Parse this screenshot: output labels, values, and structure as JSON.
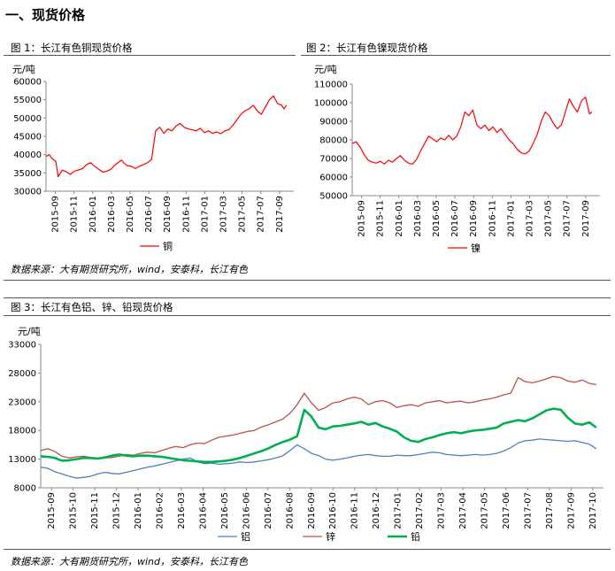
{
  "section_title": "一、现货价格",
  "figures": {
    "fig1": {
      "title": "图 1：长江有色铜现货价格"
    },
    "fig2": {
      "title": "图 2：长江有色镍现货价格"
    },
    "fig3": {
      "title": "图 3：长江有色铝、锌、铅现货价格"
    }
  },
  "source_1": "数据来源：大有期货研究所，wind，安泰科，长江有色",
  "source_2": "数据来源：大有期货研究所，wind，安泰科，长江有色",
  "chart_data": [
    {
      "type": "line",
      "ylabel": "元/吨",
      "ylim": [
        30000,
        60000
      ],
      "yticks": [
        "60000",
        "55000",
        "50000",
        "45000",
        "40000",
        "35000",
        "30000"
      ],
      "x_ticks": [
        "2015-09",
        "2015-11",
        "2016-01",
        "2016-03",
        "2016-05",
        "2016-07",
        "2016-09",
        "2016-11",
        "2017-01",
        "2017-03",
        "2017-05",
        "2017-07",
        "2017-09"
      ],
      "legend_position": "bottom",
      "series": [
        {
          "name": "铜",
          "color": "#ff0000",
          "x": [
            0,
            0.4,
            0.7,
            1.2,
            1.5,
            2,
            2.5,
            3,
            3.5,
            4,
            4.5,
            5,
            5.5,
            6,
            6.5,
            7,
            7.5,
            8,
            8.5,
            9,
            9.3,
            9.6,
            10,
            10.5,
            11,
            11.5,
            12,
            12.5,
            13,
            13.5,
            14,
            14.5,
            15,
            15.5,
            16,
            16.5,
            17,
            17.5,
            18,
            18.5,
            19,
            19.5,
            20,
            20.5,
            21,
            21.5,
            22,
            22.5,
            23,
            23.5,
            24,
            24.5,
            25,
            25.5,
            26,
            26.5,
            27,
            27.5,
            28,
            28.5,
            29,
            29.3,
            29.6
          ],
          "values": [
            39500,
            40000,
            39000,
            38200,
            34000,
            35800,
            35300,
            34600,
            35500,
            35800,
            36200,
            37300,
            37800,
            36800,
            36000,
            35200,
            35500,
            36000,
            37200,
            38000,
            38500,
            37700,
            37000,
            36800,
            36200,
            36800,
            37300,
            37800,
            38700,
            46500,
            47500,
            45800,
            47000,
            46500,
            47800,
            48500,
            47500,
            47000,
            46800,
            46500,
            47200,
            46000,
            46500,
            45800,
            46200,
            45700,
            46500,
            46800,
            48000,
            49500,
            51000,
            52000,
            52500,
            53500,
            52000,
            51000,
            53000,
            55000,
            56000,
            54000,
            53500,
            52500,
            53500
          ]
        }
      ]
    },
    {
      "type": "line",
      "ylabel": "元/吨",
      "ylim": [
        50000,
        110000
      ],
      "yticks": [
        "110000",
        "100000",
        "90000",
        "80000",
        "70000",
        "60000",
        "50000"
      ],
      "x_ticks": [
        "2015-09",
        "2015-11",
        "2016-01",
        "2016-03",
        "2016-05",
        "2016-07",
        "2016-09",
        "2016-11",
        "2017-01",
        "2017-03",
        "2017-05",
        "2017-07",
        "2017-09"
      ],
      "legend_position": "bottom",
      "series": [
        {
          "name": "镍",
          "color": "#ff0000",
          "x": [
            0,
            0.5,
            1,
            1.5,
            2,
            2.5,
            3,
            3.5,
            4,
            4.5,
            5,
            5.5,
            6,
            6.5,
            7,
            7.5,
            8,
            8.5,
            9,
            9.5,
            10,
            10.5,
            11,
            11.5,
            12,
            12.5,
            13,
            13.5,
            14,
            14.5,
            15,
            15.5,
            16,
            16.5,
            17,
            17.5,
            18,
            18.5,
            19,
            19.5,
            20,
            20.5,
            21,
            21.5,
            22,
            22.5,
            23,
            23.5,
            24,
            24.5,
            25,
            25.5,
            26,
            26.5,
            27,
            27.5,
            28,
            28.5,
            29,
            29.5,
            29.8
          ],
          "values": [
            78000,
            79000,
            76000,
            72000,
            69000,
            68000,
            67500,
            68500,
            67000,
            69000,
            68000,
            70000,
            71500,
            69000,
            67500,
            67000,
            69500,
            74000,
            78000,
            82000,
            80500,
            79000,
            81000,
            80000,
            82500,
            80000,
            82000,
            87000,
            95000,
            93000,
            96000,
            88000,
            86000,
            88000,
            85000,
            87000,
            84000,
            86000,
            83000,
            80000,
            78000,
            75000,
            73000,
            72500,
            74000,
            78000,
            83000,
            90000,
            95000,
            93000,
            89000,
            86000,
            88000,
            95000,
            102000,
            98000,
            95000,
            101000,
            103000,
            94000,
            95000
          ]
        }
      ]
    },
    {
      "type": "line",
      "ylabel": "元/吨",
      "ylim": [
        8000,
        33000
      ],
      "yticks": [
        "33000",
        "28000",
        "23000",
        "18000",
        "13000",
        "8000"
      ],
      "x_ticks": [
        "2015-09",
        "2015-10",
        "2015-11",
        "2015-12",
        "2016-01",
        "2016-02",
        "2016-03",
        "2016-04",
        "2016-05",
        "2016-06",
        "2016-07",
        "2016-08",
        "2016-09",
        "2016-10",
        "2016-11",
        "2016-12",
        "2017-01",
        "2017-02",
        "2017-03",
        "2017-04",
        "2017-05",
        "2017-06",
        "2017-07",
        "2017-08",
        "2017-09",
        "2017-10"
      ],
      "legend_position": "bottom",
      "series": [
        {
          "name": "铝",
          "color": "#4f81bd",
          "x": [
            0,
            1,
            2,
            3,
            4,
            5,
            6,
            7,
            8,
            9,
            10,
            11,
            12,
            13,
            14,
            15,
            16,
            17,
            18,
            19,
            20,
            21,
            22,
            23,
            24,
            25,
            26,
            27,
            28,
            29,
            30,
            31,
            32,
            33,
            34,
            35,
            36,
            37,
            38,
            39,
            40,
            41,
            42,
            43,
            44,
            45,
            46,
            47,
            48,
            49,
            50,
            51,
            52,
            53,
            54,
            55,
            56,
            57,
            58,
            59,
            60,
            61,
            62,
            63,
            64,
            65,
            66,
            67,
            68,
            69,
            70,
            71,
            72,
            73,
            74,
            75,
            76,
            77,
            78
          ],
          "values": [
            11600,
            11400,
            10800,
            10400,
            10000,
            9700,
            9800,
            10000,
            10400,
            10700,
            10500,
            10400,
            10700,
            11000,
            11300,
            11600,
            11800,
            12100,
            12400,
            12700,
            13000,
            13200,
            12500,
            12200,
            12300,
            12100,
            12200,
            12300,
            12500,
            12400,
            12500,
            12700,
            12900,
            13200,
            13600,
            14500,
            15500,
            14800,
            14000,
            13600,
            13000,
            12800,
            13000,
            13200,
            13500,
            13700,
            13800,
            13600,
            13500,
            13500,
            13700,
            13600,
            13600,
            13800,
            14000,
            14200,
            14100,
            13800,
            13700,
            13600,
            13700,
            13800,
            13700,
            13800,
            14000,
            14400,
            15000,
            15800,
            16200,
            16300,
            16500,
            16400,
            16300,
            16200,
            16100,
            16200,
            15900,
            15600,
            14800
          ]
        },
        {
          "name": "锌",
          "color": "#c0504d",
          "x": [
            0,
            1,
            2,
            3,
            4,
            5,
            6,
            7,
            8,
            9,
            10,
            11,
            12,
            13,
            14,
            15,
            16,
            17,
            18,
            19,
            20,
            21,
            22,
            23,
            24,
            25,
            26,
            27,
            28,
            29,
            30,
            31,
            32,
            33,
            34,
            35,
            36,
            37,
            38,
            39,
            40,
            41,
            42,
            43,
            44,
            45,
            46,
            47,
            48,
            49,
            50,
            51,
            52,
            53,
            54,
            55,
            56,
            57,
            58,
            59,
            60,
            61,
            62,
            63,
            64,
            65,
            66,
            67,
            68,
            69,
            70,
            71,
            72,
            73,
            74,
            75,
            76,
            77,
            78
          ],
          "values": [
            14500,
            14800,
            14300,
            13500,
            13200,
            13400,
            13500,
            13300,
            13100,
            13200,
            13300,
            13500,
            13800,
            13700,
            14000,
            14200,
            14100,
            14500,
            14900,
            15200,
            15000,
            15500,
            15800,
            15700,
            16300,
            16800,
            17000,
            17200,
            17500,
            17800,
            18000,
            18600,
            19000,
            19500,
            20000,
            21000,
            22500,
            24500,
            22800,
            21500,
            22000,
            22800,
            23000,
            23500,
            23800,
            23500,
            22500,
            23000,
            23200,
            22800,
            22000,
            22300,
            22500,
            22200,
            22800,
            23000,
            23200,
            22800,
            23000,
            23100,
            22800,
            23000,
            23300,
            23500,
            23800,
            24200,
            24500,
            27200,
            26500,
            26300,
            26600,
            27000,
            27400,
            27200,
            26600,
            26400,
            26800,
            26200,
            26000
          ]
        },
        {
          "name": "铅",
          "color": "#00b050",
          "x": [
            0,
            1,
            2,
            3,
            4,
            5,
            6,
            7,
            8,
            9,
            10,
            11,
            12,
            13,
            14,
            15,
            16,
            17,
            18,
            19,
            20,
            21,
            22,
            23,
            24,
            25,
            26,
            27,
            28,
            29,
            30,
            31,
            32,
            33,
            34,
            35,
            36,
            37,
            38,
            39,
            40,
            41,
            42,
            43,
            44,
            45,
            46,
            47,
            48,
            49,
            50,
            51,
            52,
            53,
            54,
            55,
            56,
            57,
            58,
            59,
            60,
            61,
            62,
            63,
            64,
            65,
            66,
            67,
            68,
            69,
            70,
            71,
            72,
            73,
            74,
            75,
            76,
            77,
            78
          ],
          "values": [
            13500,
            13400,
            13200,
            12700,
            12800,
            13000,
            13200,
            13200,
            13100,
            13300,
            13600,
            13800,
            13600,
            13500,
            13600,
            13600,
            13500,
            13400,
            13200,
            13000,
            12800,
            12700,
            12600,
            12500,
            12500,
            12600,
            12700,
            12900,
            13200,
            13600,
            14000,
            14400,
            14900,
            15500,
            16000,
            16400,
            17000,
            21600,
            20400,
            18500,
            18200,
            18700,
            18800,
            19000,
            19200,
            19500,
            19000,
            19300,
            18700,
            18300,
            17800,
            16800,
            16200,
            16000,
            16500,
            16800,
            17200,
            17500,
            17700,
            17500,
            17800,
            18000,
            18100,
            18300,
            18500,
            19200,
            19500,
            19800,
            19600,
            20100,
            20800,
            21500,
            21800,
            21600,
            20200,
            19200,
            19000,
            19400,
            18500
          ]
        }
      ]
    }
  ]
}
